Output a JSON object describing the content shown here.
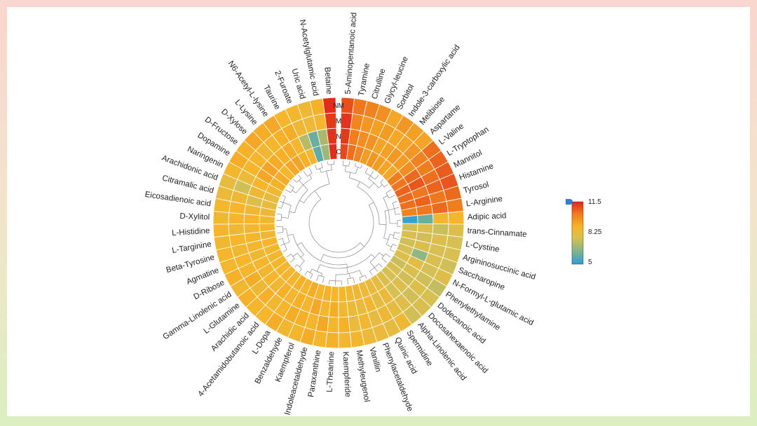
{
  "colors": {
    "background_top": "#f9d6cf",
    "background_bottom": "#dcefc0",
    "card": "#ffffff",
    "cell_border": "#ffffff",
    "tree": "#888888",
    "legend_handle": "#2f7fd8"
  },
  "chart_data": {
    "type": "heatmap",
    "layout": "circular heatmap with hierarchical clustering dendrogram",
    "rings": [
      "C",
      "N",
      "M",
      "NM"
    ],
    "color_scale": {
      "min": 5,
      "mid": 8.25,
      "max": 11.5,
      "colors": [
        "#2b9ed8",
        "#7fb38d",
        "#d8c052",
        "#f6b52a",
        "#f07e1e",
        "#e0261c"
      ]
    },
    "legend_ticks": [
      "11.5",
      "8.25",
      "5"
    ],
    "grid": false,
    "legend_position": "right",
    "metabolites": [
      "5-Aminopentanoic acid",
      "Tyramine",
      "Citrulline",
      "Glycyl-leucine",
      "Sorbitol",
      "Indole-3-carboxylic acid",
      "Melibiose",
      "Aspartame",
      "L-Valine",
      "L-Tryptophan",
      "Mannitol",
      "Histamine",
      "Tyrosol",
      "L-Arginine",
      "Adipic acid",
      "trans-Cinnamate",
      "L-Cystine",
      "Argininosuccinic acid",
      "Saccharopine",
      "N-Formyl-L-glutamic acid",
      "Phenylethylamine",
      "Dodecanoic acid",
      "Docosahexaenoic acid",
      "Alpha-Linolenic acid",
      "Spermidine",
      "Quinic acid",
      "Phenylacetaldehyde",
      "Vanillin",
      "Methyleugenol",
      "Kaempferide",
      "L-Theanine",
      "Paraxanthine",
      "Indoleacetaldehyde",
      "Kaempferol",
      "Benzaldehyde",
      "L-Dopa",
      "4-Acetamidobutanoic acid",
      "Arachidic acid",
      "L-Glutamine",
      "Gamma-Linolenic acid",
      "D-Ribose",
      "Agmatine",
      "Beta-Tyrosine",
      "L-Targinine",
      "L-Histidine",
      "D-Xylitol",
      "Eicosadienoic acid",
      "Citramalic acid",
      "Arachidonic acid",
      "Naringenin",
      "Dopamine",
      "D-Fructose",
      "D-Xylose",
      "L-Lysine",
      "N6-Acetyl-L-lysine",
      "Taurine",
      "2-Furoate",
      "Uric acid",
      "N-Acetylglutamic acid",
      "Betaine"
    ],
    "values": [
      [
        11.0,
        11.2,
        11.3,
        10.9
      ],
      [
        10.4,
        10.2,
        10.0,
        10.3
      ],
      [
        10.0,
        9.8,
        9.6,
        10.1
      ],
      [
        9.5,
        9.7,
        9.4,
        9.8
      ],
      [
        9.6,
        9.3,
        9.5,
        9.2
      ],
      [
        9.5,
        9.4,
        9.2,
        9.6
      ],
      [
        9.3,
        9.6,
        9.3,
        9.4
      ],
      [
        9.2,
        9.5,
        9.6,
        9.3
      ],
      [
        10.2,
        9.8,
        10.1,
        10.4
      ],
      [
        10.3,
        10.5,
        10.2,
        10.6
      ],
      [
        10.6,
        10.8,
        10.4,
        10.7
      ],
      [
        10.5,
        10.3,
        10.6,
        10.8
      ],
      [
        10.4,
        10.6,
        10.3,
        10.5
      ],
      [
        10.1,
        10.3,
        10.5,
        10.2
      ],
      [
        5.2,
        6.0,
        8.7,
        8.8
      ],
      [
        7.6,
        7.8,
        7.5,
        7.9
      ],
      [
        7.8,
        7.6,
        7.9,
        7.7
      ],
      [
        7.6,
        7.9,
        7.7,
        7.8
      ],
      [
        7.7,
        6.6,
        7.8,
        7.6
      ],
      [
        7.9,
        8.1,
        7.7,
        8.0
      ],
      [
        7.5,
        7.8,
        7.6,
        7.4
      ],
      [
        7.8,
        7.6,
        7.9,
        7.7
      ],
      [
        7.7,
        7.9,
        7.6,
        7.8
      ],
      [
        7.9,
        7.7,
        8.0,
        7.6
      ],
      [
        8.3,
        8.5,
        8.2,
        8.6
      ],
      [
        8.4,
        8.2,
        8.6,
        8.3
      ],
      [
        8.5,
        8.7,
        8.3,
        8.4
      ],
      [
        8.6,
        8.4,
        8.7,
        8.5
      ],
      [
        8.7,
        8.5,
        8.4,
        8.8
      ],
      [
        8.8,
        8.6,
        9.0,
        8.7
      ],
      [
        8.9,
        9.1,
        8.8,
        9.0
      ],
      [
        9.0,
        8.8,
        9.2,
        8.9
      ],
      [
        8.9,
        9.2,
        8.8,
        9.1
      ],
      [
        9.1,
        8.9,
        9.0,
        8.8
      ],
      [
        8.9,
        9.0,
        9.1,
        8.7
      ],
      [
        9.0,
        8.8,
        8.9,
        9.1
      ],
      [
        8.8,
        9.0,
        8.7,
        8.9
      ],
      [
        8.9,
        8.7,
        9.0,
        8.8
      ],
      [
        8.8,
        8.9,
        8.6,
        9.0
      ],
      [
        8.9,
        8.8,
        9.1,
        8.7
      ],
      [
        8.7,
        8.9,
        8.8,
        9.0
      ],
      [
        8.8,
        8.6,
        8.9,
        8.8
      ],
      [
        8.9,
        8.8,
        8.7,
        8.9
      ],
      [
        8.6,
        8.8,
        8.9,
        8.7
      ],
      [
        8.8,
        8.7,
        8.6,
        8.9
      ],
      [
        8.7,
        8.9,
        8.8,
        8.6
      ],
      [
        8.6,
        8.7,
        8.9,
        8.8
      ],
      [
        8.3,
        7.9,
        8.6,
        8.5
      ],
      [
        8.4,
        8.6,
        7.6,
        8.3
      ],
      [
        8.7,
        8.9,
        8.5,
        8.8
      ],
      [
        9.0,
        9.2,
        8.9,
        9.1
      ],
      [
        9.1,
        9.3,
        8.9,
        9.0
      ],
      [
        8.9,
        9.1,
        8.7,
        9.2
      ],
      [
        9.2,
        9.0,
        8.8,
        9.1
      ],
      [
        9.3,
        9.1,
        9.0,
        9.2
      ],
      [
        9.0,
        8.8,
        9.1,
        8.9
      ],
      [
        8.8,
        7.2,
        8.6,
        8.8
      ],
      [
        5.8,
        6.0,
        8.5,
        8.6
      ],
      [
        6.8,
        7.0,
        8.8,
        9.0
      ],
      [
        11.4,
        11.3,
        11.2,
        11.4
      ]
    ]
  }
}
